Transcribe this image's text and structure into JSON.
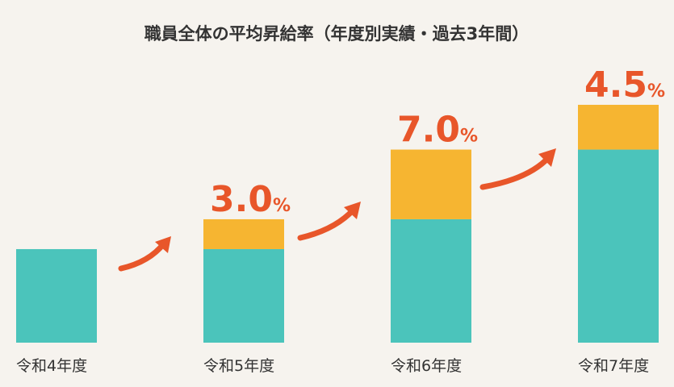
{
  "chart_data": {
    "type": "stacked_bar",
    "title": "職員全体の平均昇給率（年度別実績・過去3年間）",
    "categories": [
      "令和4年度",
      "令和5年度",
      "令和6年度",
      "令和7年度"
    ],
    "series": [
      {
        "color": "#4bc4bb",
        "values": [
          9.4,
          9.4,
          12.4,
          19.4
        ]
      },
      {
        "color": "#f6b531",
        "values": [
          null,
          3.0,
          7.0,
          4.5
        ],
        "value_labels": [
          null,
          "3.0%",
          "7.0%",
          "4.5%"
        ],
        "label_color": "#e8562a"
      }
    ]
  }
}
